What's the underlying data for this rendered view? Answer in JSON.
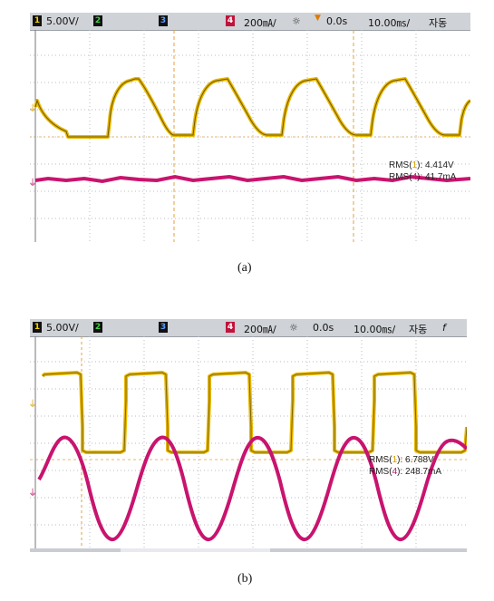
{
  "panel_a": {
    "ch1_scale": "5.00V/",
    "ch2_label": "2",
    "ch3_label": "3",
    "ch4_label": "4",
    "ch4_scale": "200㎃/",
    "time_offset": "0.0s",
    "time_scale": "10.00㎳/",
    "mode_text": "자동",
    "meas1": {
      "label": "RMS(",
      "ch": "1",
      "suffix": "):",
      "value": "4.414V"
    },
    "meas2": {
      "label": "RMS(",
      "ch": "4",
      "suffix": "):",
      "value": "41.7mA"
    },
    "caption": "(a)"
  },
  "panel_b": {
    "ch1_scale": "5.00V/",
    "ch2_label": "2",
    "ch3_label": "3",
    "ch4_label": "4",
    "ch4_scale": "200㎃/",
    "time_offset": "0.0s",
    "time_scale": "10.00㎳/",
    "mode_text": "자동",
    "trigger_symbol": "f",
    "meas1": {
      "label": "RMS(",
      "ch": "1",
      "suffix": "):",
      "value": "6.788V"
    },
    "meas2": {
      "label": "RMS(",
      "ch": "4",
      "suffix": "):",
      "value": "248.7mA"
    },
    "caption": "(b)"
  },
  "colors": {
    "ch1": "#e8b800",
    "ch4": "#c8146e",
    "grid": "#b8bcc4",
    "cursor": "#e0a040"
  }
}
